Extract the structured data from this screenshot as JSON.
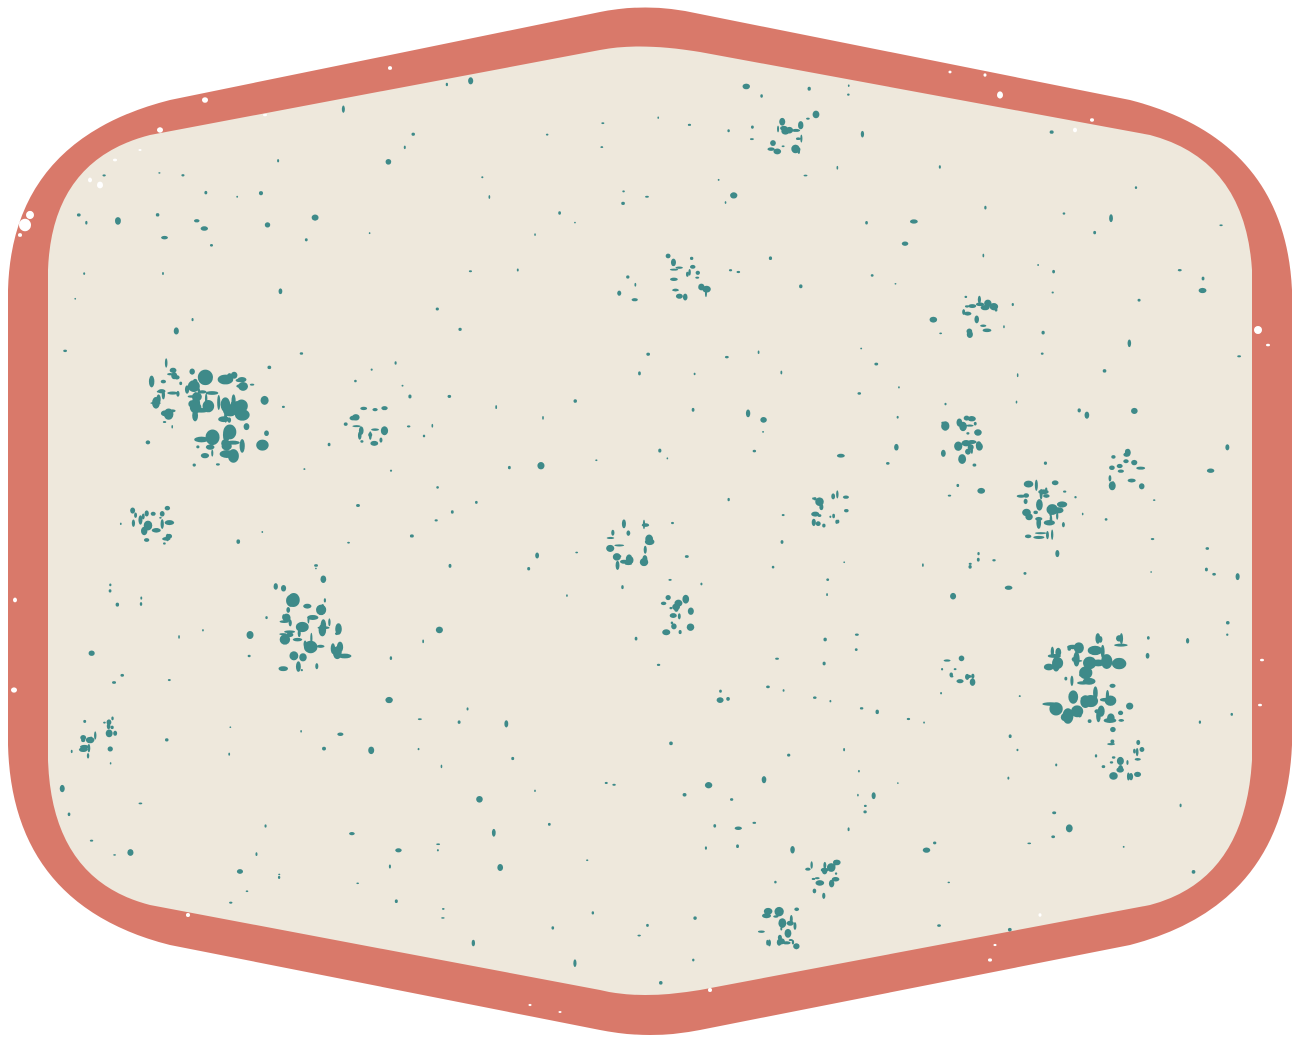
{
  "badge": {
    "shape": "rounded-hexagon-badge",
    "colors": {
      "outer_border": "#D9796A",
      "inner_fill": "#EEE8DC",
      "speckle": "#3E8A89",
      "distress": "#FFFFFF",
      "background": "#FFFFFF"
    },
    "text": ""
  }
}
